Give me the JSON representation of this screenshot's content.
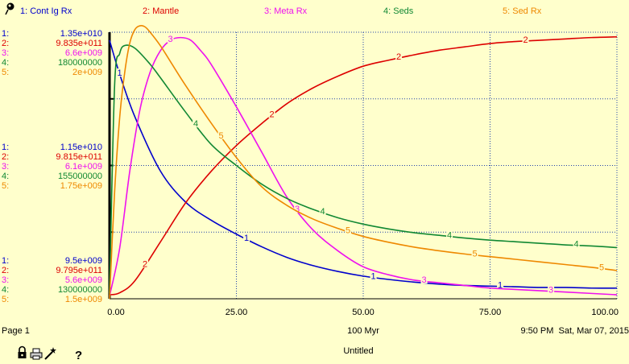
{
  "footer": {
    "page_label": "Page 1",
    "x_unit": "100 Myr",
    "timestamp": "9:50 PM  Sat, Mar 07, 2015",
    "doc_title": "Untitled"
  },
  "toolbar": {
    "icons": [
      "lock-icon",
      "print-icon",
      "wand-icon",
      "help-icon"
    ],
    "help_label": "?"
  },
  "chart_data": {
    "type": "line",
    "xlim": [
      0,
      100
    ],
    "x_ticks": [
      "0.00",
      "25.00",
      "50.00",
      "75.00",
      "100.00"
    ],
    "grid": true,
    "series": [
      {
        "id": "1",
        "name": "1: Cont Ig Rx",
        "color": "#0000CC",
        "ylim": [
          9500000000,
          13500000000
        ],
        "axis_labels": [
          "1.35e+010",
          "1.15e+010",
          "9.5e+009"
        ],
        "label_x": [
          2,
          27,
          52,
          77
        ],
        "x": [
          0,
          2,
          5,
          10,
          15,
          20,
          25,
          30,
          35,
          40,
          45,
          50,
          55,
          60,
          65,
          70,
          75,
          80,
          85,
          90,
          95,
          100
        ],
        "values": [
          13380000000,
          12870000000,
          12230000000,
          11420000000,
          10950000000,
          10680000000,
          10470000000,
          10280000000,
          10120000000,
          10000000000,
          9910000000,
          9840000000,
          9790000000,
          9750000000,
          9720000000,
          9700000000,
          9690000000,
          9680000000,
          9670000000,
          9670000000,
          9660000000,
          9660000000
        ]
      },
      {
        "id": "2",
        "name": "2: Mantle",
        "color": "#DD0000",
        "ylim": [
          979500000000,
          983500000000
        ],
        "axis_labels": [
          "9.835e+011",
          "9.815e+011",
          "9.795e+011"
        ],
        "label_x": [
          7,
          32,
          57,
          82
        ],
        "x": [
          0,
          2,
          5,
          10,
          15,
          20,
          25,
          30,
          35,
          40,
          45,
          50,
          55,
          60,
          65,
          70,
          75,
          80,
          85,
          90,
          95,
          100
        ],
        "values": [
          979560000000,
          979590000000,
          979770000000,
          980350000000,
          980940000000,
          981410000000,
          981800000000,
          982130000000,
          982430000000,
          982660000000,
          982840000000,
          982990000000,
          983080000000,
          983160000000,
          983230000000,
          983280000000,
          983330000000,
          983360000000,
          983380000000,
          983400000000,
          983420000000,
          983430000000
        ]
      },
      {
        "id": "3",
        "name": "3: Meta Rx",
        "color": "#EE11EE",
        "ylim": [
          5600000000,
          6600000000
        ],
        "axis_labels": [
          "6.6e+009",
          "6.1e+009",
          "5.6e+009"
        ],
        "label_x": [
          12,
          37,
          62,
          87
        ],
        "x": [
          0,
          2,
          4,
          6,
          8,
          10,
          12,
          14,
          16,
          18,
          20,
          25,
          30,
          35,
          40,
          45,
          50,
          55,
          60,
          65,
          70,
          75,
          80,
          85,
          90,
          95,
          100
        ],
        "values": [
          5610000000,
          5790000000,
          6080000000,
          6310000000,
          6450000000,
          6530000000,
          6570000000,
          6580000000,
          6570000000,
          6530000000,
          6480000000,
          6320000000,
          6150000000,
          5980000000,
          5860000000,
          5780000000,
          5720000000,
          5690000000,
          5670000000,
          5660000000,
          5650000000,
          5640000000,
          5635000000,
          5630000000,
          5625000000,
          5620000000,
          5615000000
        ]
      },
      {
        "id": "4",
        "name": "4: Seds",
        "color": "#118833",
        "ylim": [
          130000000,
          180000000
        ],
        "axis_labels": [
          "180000000",
          "155000000",
          "130000000"
        ],
        "label_x": [
          17,
          42,
          67,
          92
        ],
        "x": [
          0,
          1,
          2,
          3,
          5,
          8,
          10,
          15,
          20,
          25,
          30,
          35,
          40,
          45,
          50,
          55,
          60,
          65,
          70,
          75,
          80,
          85,
          90,
          95,
          100
        ],
        "values": [
          131000000,
          170000000,
          176000000,
          177500000,
          177000000,
          174000000,
          171500000,
          165000000,
          159000000,
          155000000,
          151500000,
          148800000,
          146800000,
          145200000,
          144000000,
          143100000,
          142400000,
          141900000,
          141400000,
          141000000,
          140700000,
          140400000,
          140100000,
          139900000,
          139600000
        ]
      },
      {
        "id": "5",
        "name": "5: Sed Rx",
        "color": "#EE8800",
        "ylim": [
          1500000000,
          2000000000
        ],
        "axis_labels": [
          "2e+009",
          "1.75e+009",
          "1.5e+009"
        ],
        "label_x": [
          22,
          47,
          72,
          97
        ],
        "x": [
          0,
          1,
          2,
          3,
          4,
          5,
          6,
          7,
          8,
          10,
          12,
          15,
          20,
          25,
          30,
          35,
          40,
          45,
          50,
          55,
          60,
          65,
          70,
          75,
          80,
          85,
          90,
          95,
          100
        ],
        "values": [
          1500000000,
          1700000000,
          1840000000,
          1925000000,
          1980000000,
          2005000000,
          2012000000,
          2010000000,
          2000000000,
          1975000000,
          1945000000,
          1900000000,
          1830000000,
          1765000000,
          1710000000,
          1675000000,
          1650000000,
          1632000000,
          1617000000,
          1606000000,
          1597000000,
          1590000000,
          1584000000,
          1579000000,
          1574000000,
          1569000000,
          1564000000,
          1559000000,
          1553000000
        ]
      }
    ]
  }
}
